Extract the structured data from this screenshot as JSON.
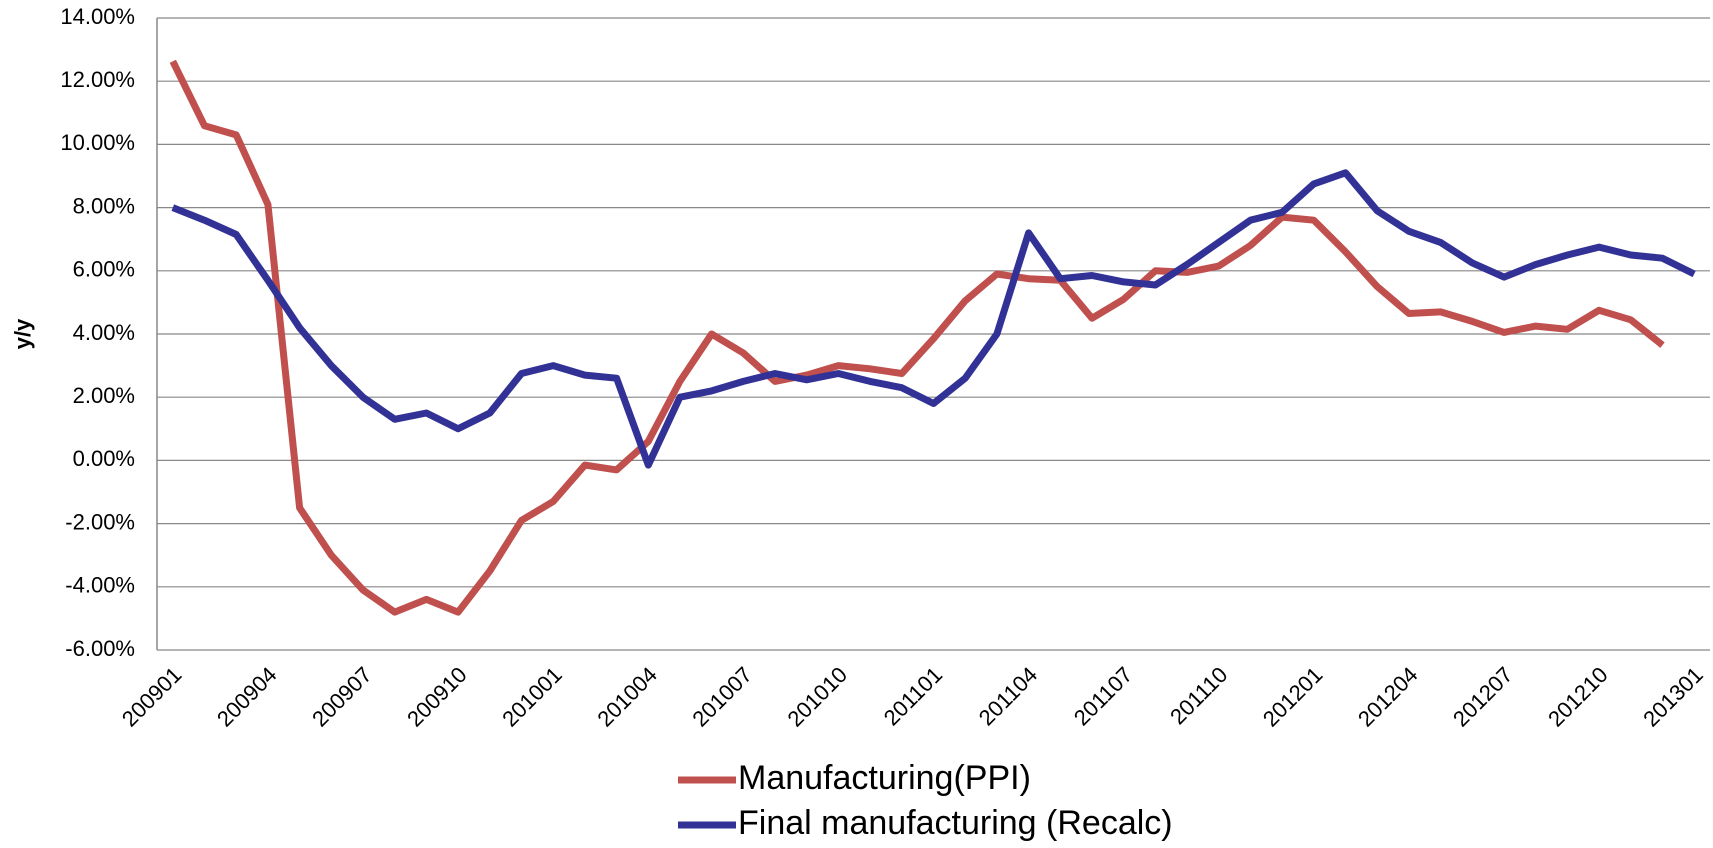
{
  "chart_data": {
    "type": "line",
    "y_label": "y/y",
    "categories": [
      "200901",
      null,
      null,
      "200904",
      null,
      null,
      "200907",
      null,
      null,
      "200910",
      null,
      null,
      "201001",
      null,
      null,
      "201004",
      null,
      null,
      "201007",
      null,
      null,
      "201010",
      null,
      null,
      "201101",
      null,
      null,
      "201104",
      null,
      null,
      "201107",
      null,
      null,
      "201110",
      null,
      null,
      "201201",
      null,
      null,
      "201204",
      null,
      null,
      "201207",
      null,
      null,
      "201210",
      null,
      null,
      "201301"
    ],
    "series": [
      {
        "name": "Manufacturing(PPI)",
        "color": "#c0504d",
        "values": [
          12.63,
          10.59,
          10.3,
          8.1,
          -1.5,
          -3.0,
          -4.1,
          -4.8,
          -4.4,
          -4.8,
          -3.5,
          -1.9,
          -1.3,
          -0.15,
          -0.3,
          0.6,
          2.5,
          4.0,
          3.4,
          2.5,
          2.7,
          3.0,
          2.9,
          2.75,
          3.85,
          5.05,
          5.9,
          5.75,
          5.7,
          4.5,
          5.1,
          6.0,
          5.95,
          6.15,
          6.8,
          7.7,
          7.6,
          6.6,
          5.5,
          4.65,
          4.7,
          4.4,
          4.05,
          4.25,
          4.15,
          4.75,
          4.45,
          3.65,
          null
        ]
      },
      {
        "name": "Final manufacturing (Recalc)",
        "color": "#323296",
        "values": [
          8.0,
          7.6,
          7.15,
          5.7,
          4.2,
          3.0,
          2.0,
          1.3,
          1.5,
          1.0,
          1.5,
          2.75,
          3.0,
          2.7,
          2.6,
          -0.15,
          2.0,
          2.2,
          2.5,
          2.75,
          2.55,
          2.75,
          2.5,
          2.3,
          1.8,
          2.6,
          4.0,
          7.2,
          5.75,
          5.85,
          5.65,
          5.55,
          6.2,
          6.9,
          7.6,
          7.85,
          8.75,
          9.1,
          7.9,
          7.25,
          6.9,
          6.25,
          5.8,
          6.2,
          6.5,
          6.75,
          6.5,
          6.4,
          5.9
        ]
      }
    ],
    "ylim": [
      -6,
      14
    ],
    "yticks": [
      {
        "value": -6,
        "label": "-6.00%"
      },
      {
        "value": -4,
        "label": "-4.00%"
      },
      {
        "value": -2,
        "label": "-2.00%"
      },
      {
        "value": 0,
        "label": "0.00%"
      },
      {
        "value": 2,
        "label": "2.00%"
      },
      {
        "value": 4,
        "label": "4.00%"
      },
      {
        "value": 6,
        "label": "6.00%"
      },
      {
        "value": 8,
        "label": "8.00%"
      },
      {
        "value": 10,
        "label": "10.00%"
      },
      {
        "value": 12,
        "label": "12.00%"
      },
      {
        "value": 14,
        "label": "14.00%"
      }
    ],
    "grid": true,
    "legend": "bottom"
  }
}
